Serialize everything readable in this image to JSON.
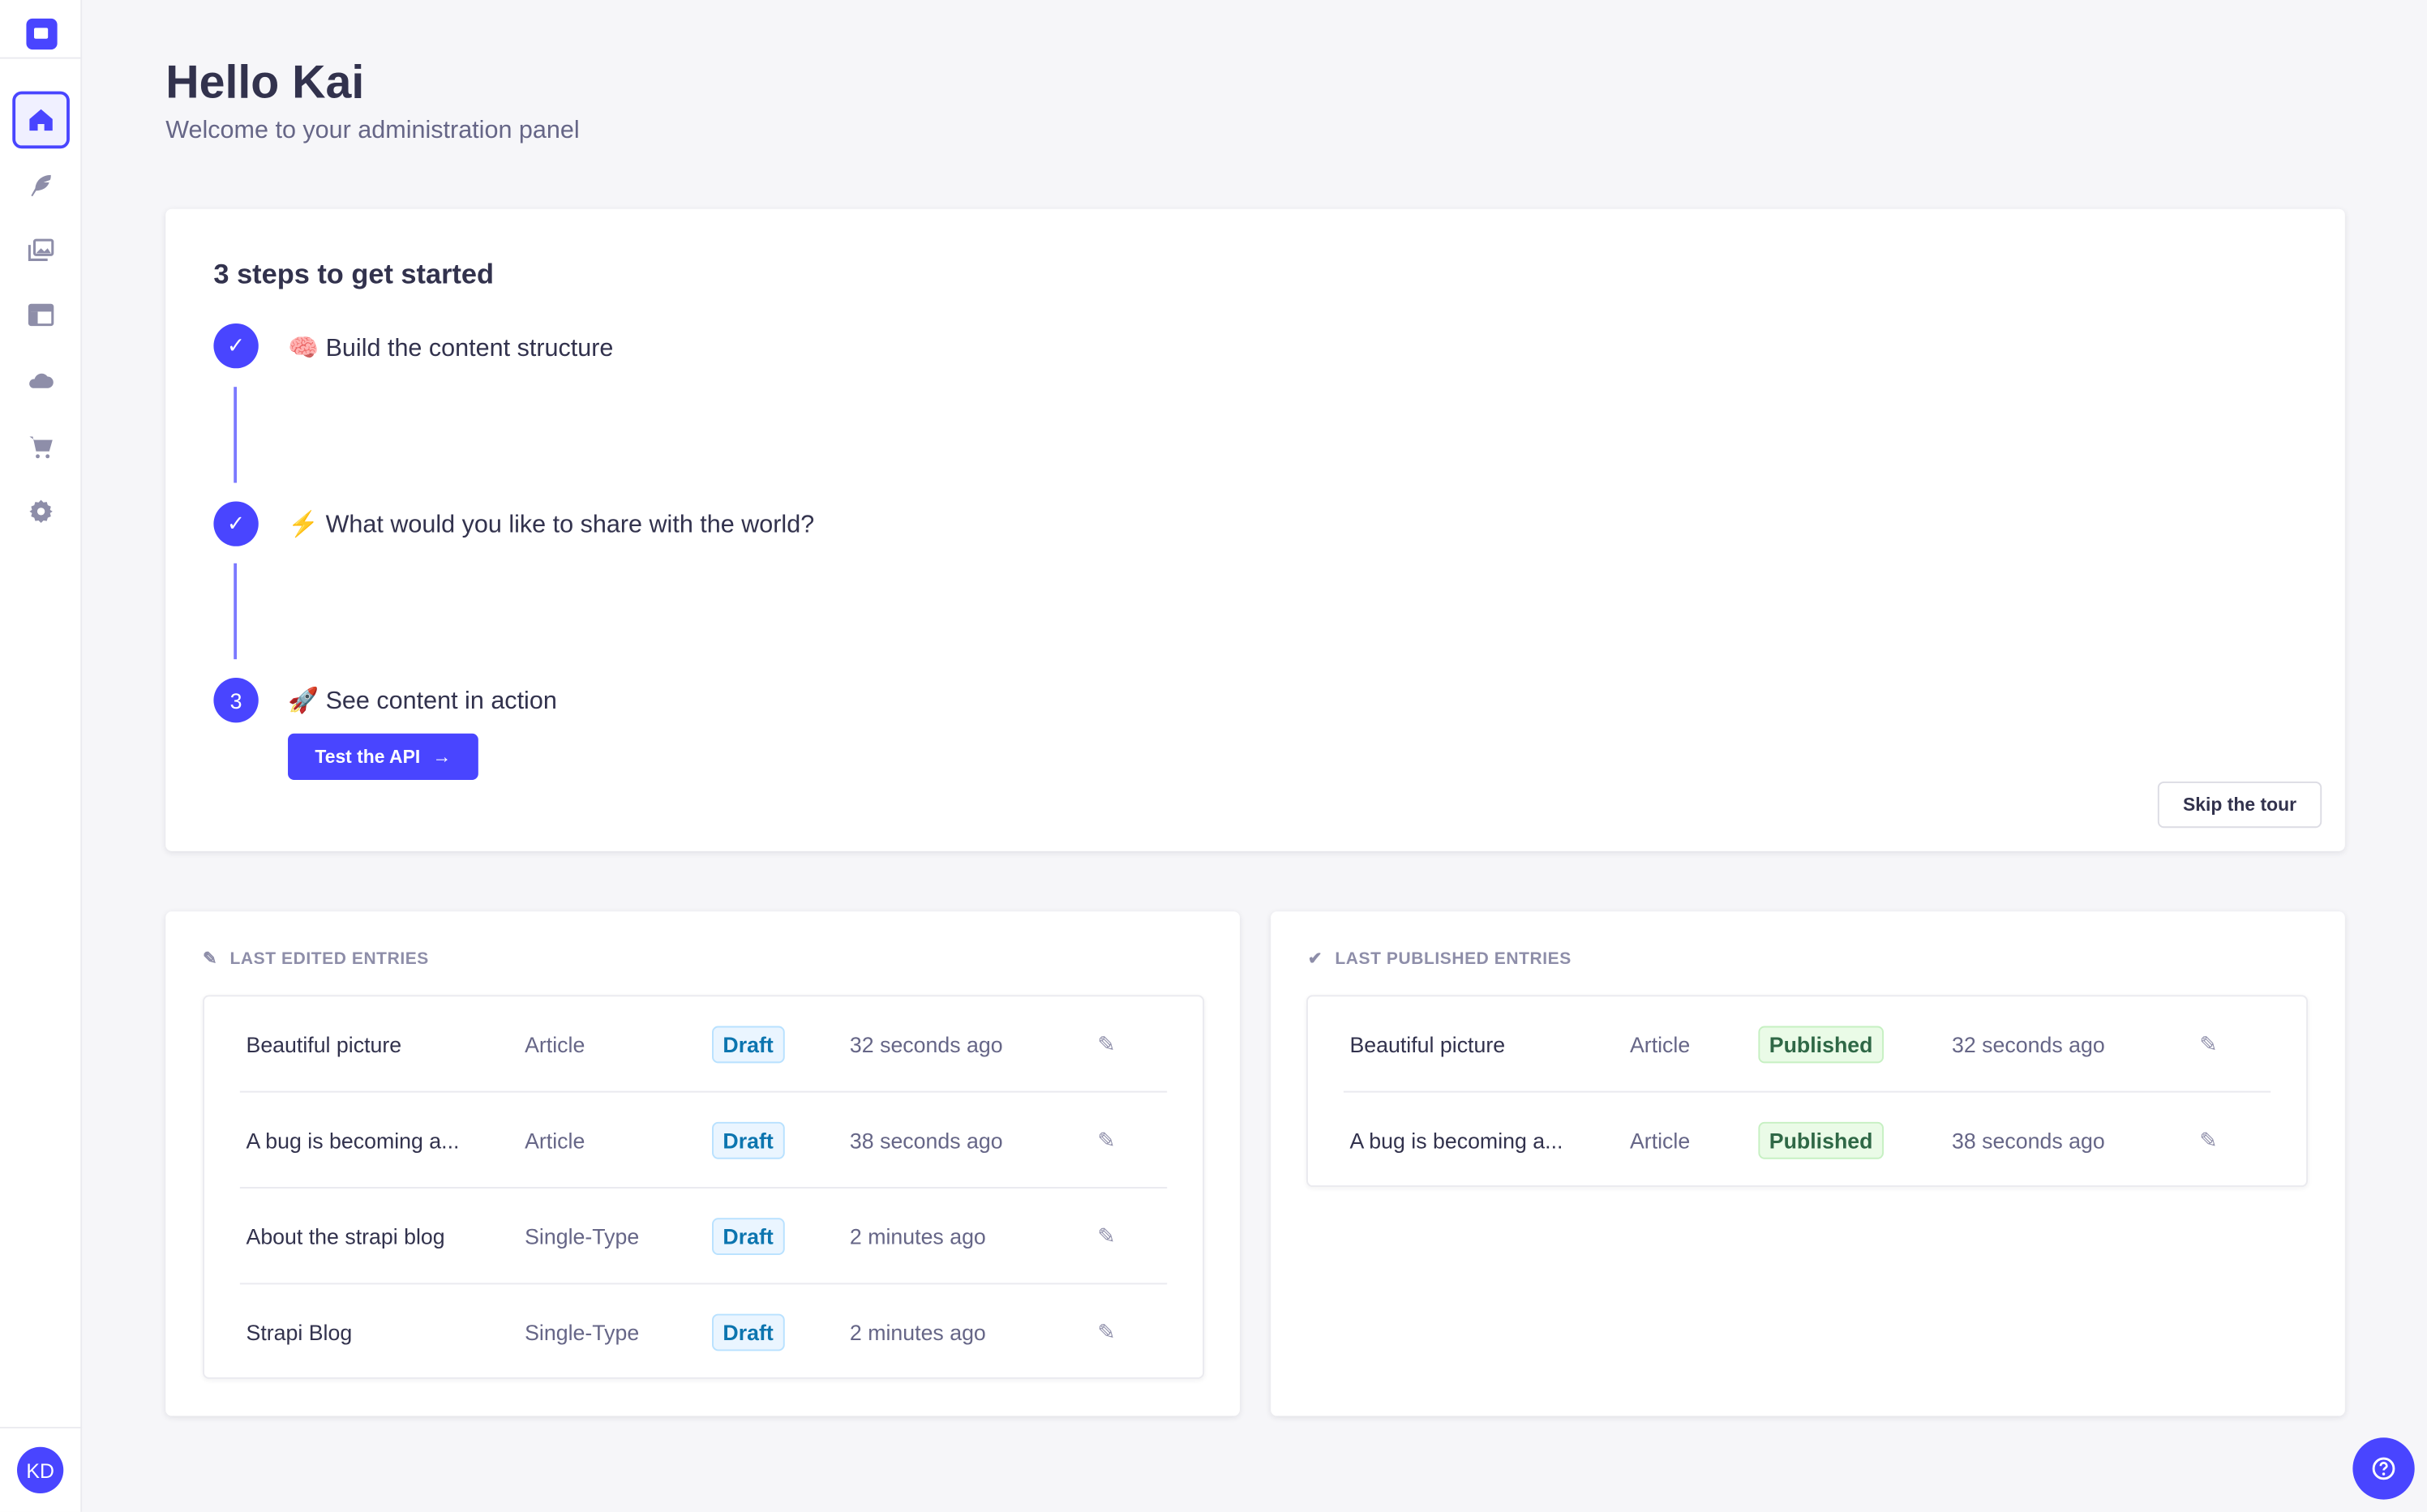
{
  "sidebar": {
    "items": [
      {
        "icon": "home-icon",
        "active": true
      },
      {
        "icon": "feather-icon"
      },
      {
        "icon": "media-library-icon"
      },
      {
        "icon": "layout-icon"
      },
      {
        "icon": "cloud-icon"
      },
      {
        "icon": "cart-icon"
      },
      {
        "icon": "settings-gear-icon"
      }
    ],
    "avatar_initials": "KD"
  },
  "header": {
    "title": "Hello Kai",
    "subtitle": "Welcome to your administration panel"
  },
  "guided_tour": {
    "title": "3 steps to get started",
    "steps": [
      {
        "emoji": "🧠",
        "label": "Build the content structure",
        "status": "done"
      },
      {
        "emoji": "⚡",
        "label": "What would you like to share with the world?",
        "status": "done"
      },
      {
        "emoji": "🚀",
        "label": "See content in action",
        "status": "current",
        "number": "3"
      }
    ],
    "cta_label": "Test the API",
    "skip_label": "Skip the tour"
  },
  "last_edited": {
    "title": "LAST EDITED ENTRIES",
    "rows": [
      {
        "name": "Beautiful picture",
        "type": "Article",
        "status": "Draft",
        "time": "32 seconds ago"
      },
      {
        "name": "A bug is becoming a...",
        "type": "Article",
        "status": "Draft",
        "time": "38 seconds ago"
      },
      {
        "name": "About the strapi blog",
        "type": "Single-Type",
        "status": "Draft",
        "time": "2 minutes ago"
      },
      {
        "name": "Strapi Blog",
        "type": "Single-Type",
        "status": "Draft",
        "time": "2 minutes ago"
      }
    ]
  },
  "last_published": {
    "title": "LAST PUBLISHED ENTRIES",
    "rows": [
      {
        "name": "Beautiful picture",
        "type": "Article",
        "status": "Published",
        "time": "32 seconds ago"
      },
      {
        "name": "A bug is becoming a...",
        "type": "Article",
        "status": "Published",
        "time": "38 seconds ago"
      }
    ]
  },
  "colors": {
    "primary": "#4945ff",
    "draft": "#0c75af",
    "published": "#2f6846"
  }
}
